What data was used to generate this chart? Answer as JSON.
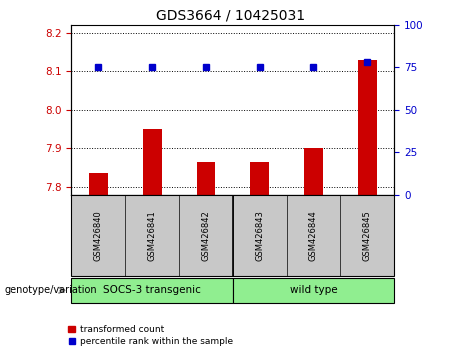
{
  "title": "GDS3664 / 10425031",
  "samples": [
    "GSM426840",
    "GSM426841",
    "GSM426842",
    "GSM426843",
    "GSM426844",
    "GSM426845"
  ],
  "red_values": [
    7.835,
    7.95,
    7.865,
    7.865,
    7.9,
    8.13
  ],
  "blue_values": [
    75,
    75,
    75,
    75,
    75,
    78
  ],
  "ylim_left": [
    7.78,
    8.22
  ],
  "ylim_right": [
    0,
    100
  ],
  "yticks_left": [
    7.8,
    7.9,
    8.0,
    8.1,
    8.2
  ],
  "yticks_right": [
    0,
    25,
    50,
    75,
    100
  ],
  "genotype_label": "genotype/variation",
  "group1_label": "SOCS-3 transgenic",
  "group2_label": "wild type",
  "legend_red": "transformed count",
  "legend_blue": "percentile rank within the sample",
  "bar_color": "#CC0000",
  "dot_color": "#0000CC",
  "tick_color_left": "#CC0000",
  "tick_color_right": "#0000CC",
  "bar_bottom": 7.78,
  "gray_color": "#C8C8C8",
  "green_color": "#90EE90"
}
